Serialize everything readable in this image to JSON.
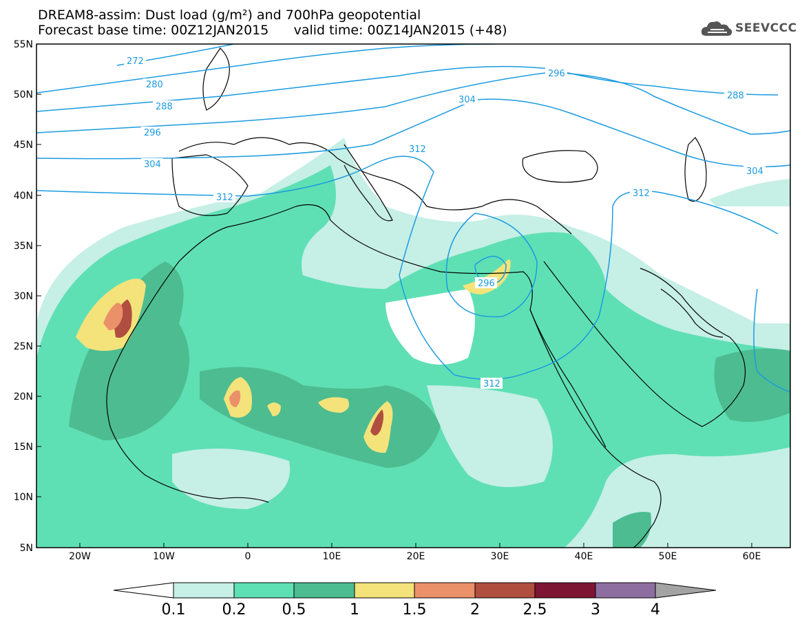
{
  "title": {
    "line1": "DREAM8-assim: Dust load (g/m²) and 700hPa geopotential",
    "line2": "Forecast base time: 00Z12JAN2015      valid time: 00Z14JAN2015 (+48)"
  },
  "logo": {
    "text": "SEEVCCC",
    "icon": "cloud-icon"
  },
  "map": {
    "lat_labels": [
      "55N",
      "50N",
      "45N",
      "40N",
      "35N",
      "30N",
      "25N",
      "20N",
      "15N",
      "10N",
      "5N"
    ],
    "lon_labels": [
      "20W",
      "10W",
      "0",
      "10E",
      "20E",
      "30E",
      "40E",
      "50E",
      "60E"
    ],
    "contour_labels": [
      "272",
      "280",
      "288",
      "296",
      "304",
      "312",
      "296",
      "304",
      "312",
      "288",
      "304",
      "312",
      "296",
      "312"
    ]
  },
  "colorbar": {
    "labels": [
      "0.1",
      "0.2",
      "0.5",
      "1",
      "1.5",
      "2",
      "2.5",
      "3",
      "4"
    ],
    "colors": {
      "c1": "#c6efe6",
      "c2": "#5fe0b4",
      "c3": "#4dbc91",
      "c4": "#f4e37a",
      "c5": "#eb916a",
      "c6": "#b04e3f",
      "c7": "#7e1433",
      "c8": "#8e6ea1",
      "c9": "#a3a3a3"
    }
  }
}
